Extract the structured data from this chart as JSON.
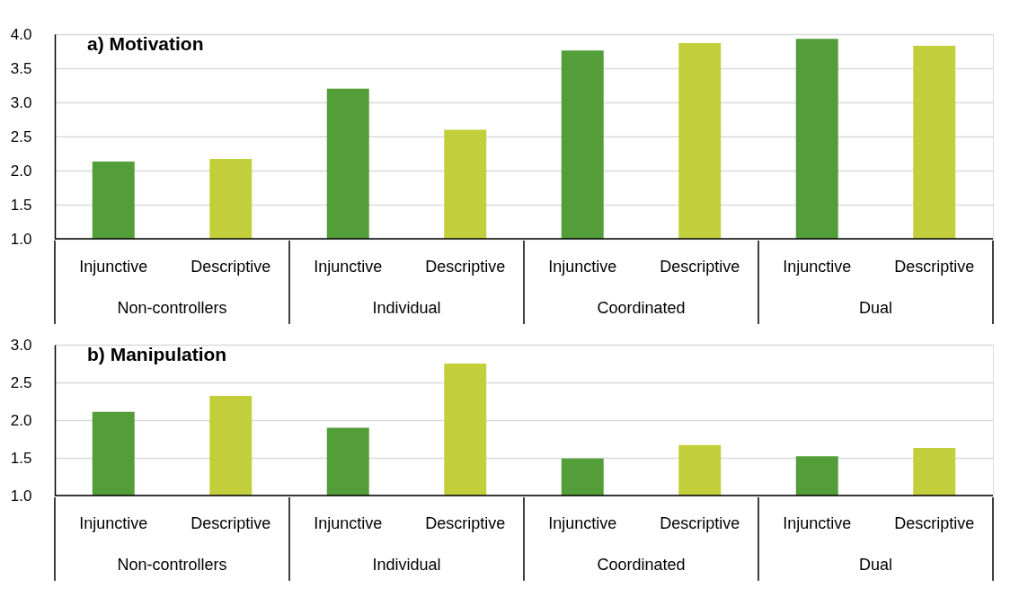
{
  "chart_data": [
    {
      "type": "bar",
      "title": "a) Motivation",
      "categories": [
        "Injunctive",
        "Descriptive",
        "Injunctive",
        "Descriptive",
        "Injunctive",
        "Descriptive",
        "Injunctive",
        "Descriptive"
      ],
      "values": [
        2.13,
        2.17,
        3.2,
        2.6,
        3.76,
        3.87,
        3.93,
        3.83
      ],
      "colors": [
        "#549e39",
        "#c2cf3b",
        "#549e39",
        "#c2cf3b",
        "#549e39",
        "#c2cf3b",
        "#549e39",
        "#c2cf3b"
      ],
      "ylim": [
        1.0,
        4.0
      ],
      "yticks": [
        {
          "value": 1,
          "label": "1.0"
        },
        {
          "value": 1.5,
          "label": "1.5"
        },
        {
          "value": 2,
          "label": "2.0"
        },
        {
          "value": 2.5,
          "label": "2.5"
        },
        {
          "value": 3,
          "label": "3.0"
        },
        {
          "value": 3.5,
          "label": "3.5"
        },
        {
          "value": 4,
          "label": "4.0"
        }
      ],
      "grid": "y",
      "annotations": [
        "Non-controllers",
        "Individual",
        "Coordinated",
        "Dual"
      ]
    },
    {
      "type": "bar",
      "title": "b) Manipulation",
      "categories": [
        "Injunctive",
        "Descriptive",
        "Injunctive",
        "Descriptive",
        "Injunctive",
        "Descriptive",
        "Injunctive",
        "Descriptive"
      ],
      "values": [
        2.11,
        2.32,
        1.9,
        2.75,
        1.49,
        1.67,
        1.52,
        1.63
      ],
      "colors": [
        "#549e39",
        "#c2cf3b",
        "#549e39",
        "#c2cf3b",
        "#549e39",
        "#c2cf3b",
        "#549e39",
        "#c2cf3b"
      ],
      "ylim": [
        1.0,
        3.0
      ],
      "yticks": [
        {
          "value": 1,
          "label": "1.0"
        },
        {
          "value": 1.5,
          "label": "1.5"
        },
        {
          "value": 2,
          "label": "2.0"
        },
        {
          "value": 2.5,
          "label": "2.5"
        },
        {
          "value": 3,
          "label": "3.0"
        }
      ],
      "grid": "y",
      "annotations": [
        "Non-controllers",
        "Individual",
        "Coordinated",
        "Dual"
      ]
    }
  ]
}
